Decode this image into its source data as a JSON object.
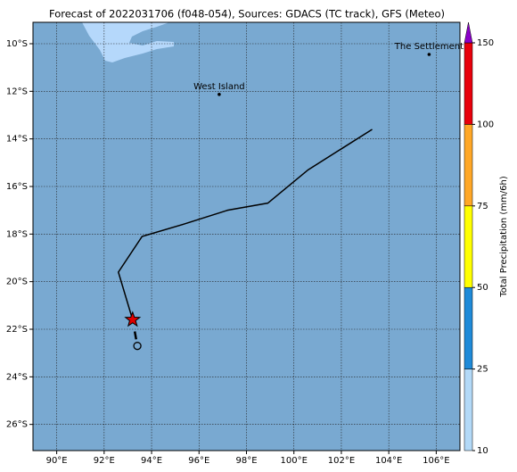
{
  "title": "Forecast of 2022031706 (f048-054), Sources: GDACS (TC track), GFS (Meteo)",
  "map": {
    "xlim": [
      89,
      107
    ],
    "ylim": [
      -27.1,
      -9.1
    ],
    "grid": true,
    "ocean_color": "#79a9d1",
    "land_color": "#b5d8fb",
    "xticks": [
      {
        "value": 90,
        "label": "90°E"
      },
      {
        "value": 92,
        "label": "92°E"
      },
      {
        "value": 94,
        "label": "94°E"
      },
      {
        "value": 96,
        "label": "96°E"
      },
      {
        "value": 98,
        "label": "98°E"
      },
      {
        "value": 100,
        "label": "100°E"
      },
      {
        "value": 102,
        "label": "102°E"
      },
      {
        "value": 104,
        "label": "104°E"
      },
      {
        "value": 106,
        "label": "106°E"
      }
    ],
    "yticks": [
      {
        "value": -10,
        "label": "10°S"
      },
      {
        "value": -12,
        "label": "12°S"
      },
      {
        "value": -14,
        "label": "14°S"
      },
      {
        "value": -16,
        "label": "16°S"
      },
      {
        "value": -18,
        "label": "18°S"
      },
      {
        "value": -20,
        "label": "20°S"
      },
      {
        "value": -22,
        "label": "22°S"
      },
      {
        "value": -24,
        "label": "24°S"
      },
      {
        "value": -26,
        "label": "26°S"
      }
    ]
  },
  "track": {
    "color": "#000000",
    "current_color": "#e00000",
    "lon": [
      103.3,
      100.6,
      98.9,
      97.2,
      95.3,
      93.6,
      92.6,
      93.2
    ],
    "lat": [
      -13.6,
      -15.3,
      -16.7,
      -17.0,
      -17.6,
      -18.1,
      -19.6,
      -21.6
    ],
    "start": {
      "lon": 93.4,
      "lat": -22.7
    }
  },
  "places": [
    {
      "label": "West Island",
      "lon": 96.85,
      "lat": -12.13
    },
    {
      "label": "The Settlement",
      "lon": 105.7,
      "lat": -10.45
    }
  ],
  "colorbar": {
    "label": "Total Precipitation (mm/6h)",
    "ticks": [
      10,
      25,
      50,
      75,
      100,
      150
    ],
    "colors": [
      "#b3d9f7",
      "#1f8ad8",
      "#ffff00",
      "#ffa726",
      "#e8000b"
    ],
    "extend_color": "#8a00c8"
  }
}
